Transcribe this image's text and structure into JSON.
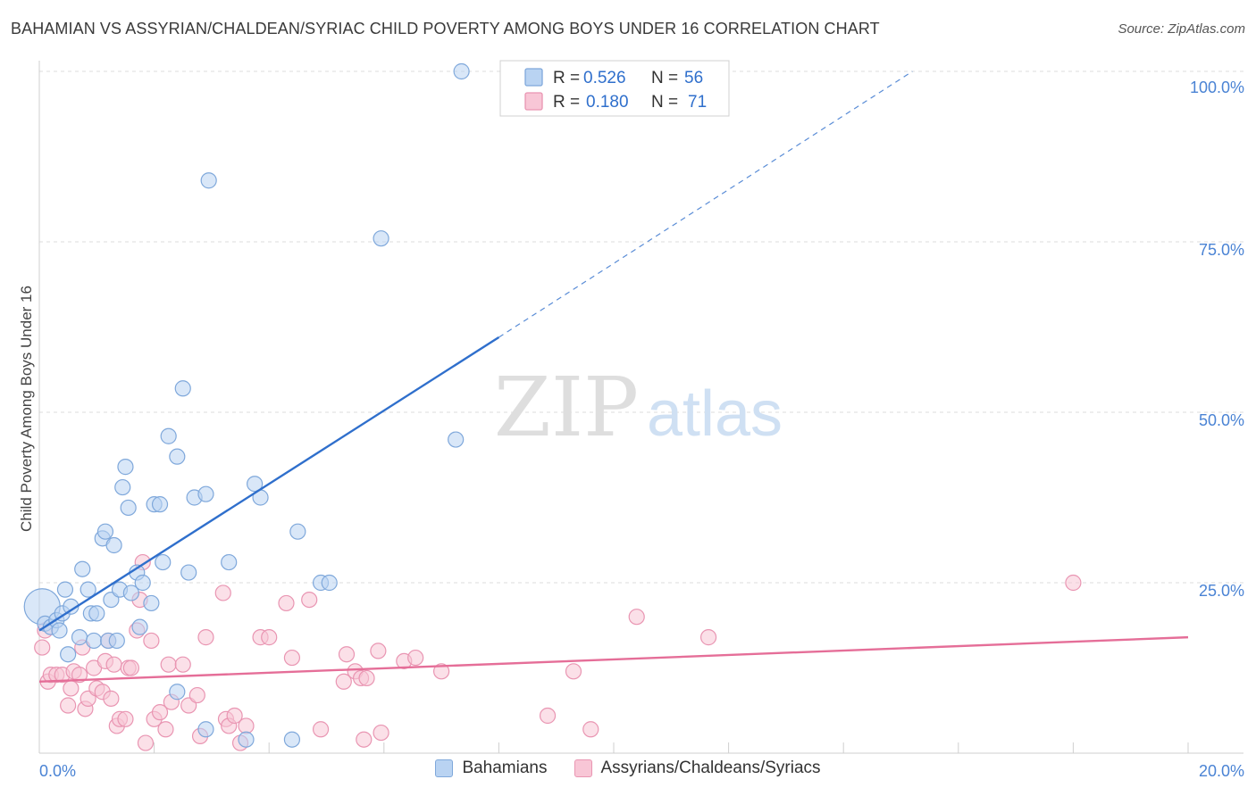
{
  "title": "BAHAMIAN VS ASSYRIAN/CHALDEAN/SYRIAC CHILD POVERTY AMONG BOYS UNDER 16 CORRELATION CHART",
  "source": "Source: ZipAtlas.com",
  "watermark": {
    "zip": "ZIP",
    "atlas": "atlas"
  },
  "colors": {
    "blue_fill": "#b9d3f2",
    "blue_stroke": "#7fa8db",
    "blue_line": "#2f6fcc",
    "pink_fill": "#f8c6d6",
    "pink_stroke": "#e995b2",
    "pink_line": "#e56e98",
    "axis_text": "#4a83d4",
    "grid": "#dcdcdc"
  },
  "chart_data": {
    "type": "scatter",
    "ylabel": "Child Poverty Among Boys Under 16",
    "xlabel": "",
    "xlim": [
      0,
      20
    ],
    "ylim": [
      0,
      100
    ],
    "x_tick_labels": [
      "0.0%",
      "20.0%"
    ],
    "y_ticks": [
      {
        "value": 25,
        "label": "25.0%"
      },
      {
        "value": 50,
        "label": "50.0%"
      },
      {
        "value": 75,
        "label": "75.0%"
      },
      {
        "value": 100,
        "label": "100.0%"
      }
    ],
    "legend": {
      "rows": [
        {
          "r_label": "R =",
          "r_value": "0.526",
          "n_label": "N =",
          "n_value": "56"
        },
        {
          "r_label": "R =",
          "r_value": "0.180",
          "n_label": "N =",
          "n_value": "71"
        }
      ]
    },
    "series": [
      {
        "name": "Bahamians",
        "trend": {
          "x0": 0.0,
          "y0": 18.0,
          "x1": 8.0,
          "y1": 61.0,
          "dash_x1": 15.2,
          "dash_y1": 100.0
        },
        "points": [
          [
            0.05,
            21.5
          ],
          [
            0.1,
            19
          ],
          [
            0.2,
            18.5
          ],
          [
            0.3,
            19.5
          ],
          [
            0.35,
            18
          ],
          [
            0.4,
            20.5
          ],
          [
            0.45,
            24
          ],
          [
            0.5,
            14.5
          ],
          [
            0.55,
            21.5
          ],
          [
            0.7,
            17
          ],
          [
            0.75,
            27
          ],
          [
            0.85,
            24
          ],
          [
            0.9,
            20.5
          ],
          [
            0.95,
            16.5
          ],
          [
            1.0,
            20.5
          ],
          [
            1.1,
            31.5
          ],
          [
            1.15,
            32.5
          ],
          [
            1.2,
            16.5
          ],
          [
            1.25,
            22.5
          ],
          [
            1.3,
            30.5
          ],
          [
            1.35,
            16.5
          ],
          [
            1.4,
            24
          ],
          [
            1.45,
            39
          ],
          [
            1.5,
            42
          ],
          [
            1.55,
            36
          ],
          [
            1.6,
            23.5
          ],
          [
            1.7,
            26.5
          ],
          [
            1.75,
            18.5
          ],
          [
            1.8,
            25
          ],
          [
            1.95,
            22
          ],
          [
            2.0,
            36.5
          ],
          [
            2.1,
            36.5
          ],
          [
            2.15,
            28
          ],
          [
            2.25,
            46.5
          ],
          [
            2.4,
            43.5
          ],
          [
            2.4,
            9
          ],
          [
            2.5,
            53.5
          ],
          [
            2.6,
            26.5
          ],
          [
            2.7,
            37.5
          ],
          [
            2.9,
            38
          ],
          [
            2.95,
            84
          ],
          [
            2.9,
            3.5
          ],
          [
            3.3,
            28
          ],
          [
            3.6,
            2
          ],
          [
            3.75,
            39.5
          ],
          [
            3.85,
            37.5
          ],
          [
            4.4,
            2
          ],
          [
            4.5,
            32.5
          ],
          [
            4.9,
            25
          ],
          [
            5.05,
            25
          ],
          [
            5.95,
            75.5
          ],
          [
            7.25,
            46
          ],
          [
            7.35,
            100
          ]
        ]
      },
      {
        "name": "Assyrians/Chaldeans/Syriacs",
        "trend": {
          "x0": 0.0,
          "y0": 10.5,
          "x1": 20.0,
          "y1": 17.0
        },
        "points": [
          [
            0.05,
            15.5
          ],
          [
            0.1,
            18
          ],
          [
            0.15,
            10.5
          ],
          [
            0.2,
            11.5
          ],
          [
            0.3,
            11.5
          ],
          [
            0.4,
            11.5
          ],
          [
            0.5,
            7
          ],
          [
            0.55,
            9.5
          ],
          [
            0.6,
            12
          ],
          [
            0.7,
            11.5
          ],
          [
            0.75,
            15.5
          ],
          [
            0.8,
            6.5
          ],
          [
            0.85,
            8
          ],
          [
            0.95,
            12.5
          ],
          [
            1.0,
            9.5
          ],
          [
            1.1,
            9
          ],
          [
            1.15,
            13.5
          ],
          [
            1.2,
            16.5
          ],
          [
            1.25,
            8
          ],
          [
            1.3,
            13
          ],
          [
            1.35,
            4
          ],
          [
            1.4,
            5
          ],
          [
            1.5,
            5
          ],
          [
            1.55,
            12.5
          ],
          [
            1.6,
            12.5
          ],
          [
            1.7,
            18
          ],
          [
            1.75,
            22.5
          ],
          [
            1.8,
            28
          ],
          [
            1.85,
            1.5
          ],
          [
            1.95,
            16.5
          ],
          [
            2.0,
            5
          ],
          [
            2.1,
            6
          ],
          [
            2.2,
            3.5
          ],
          [
            2.25,
            13
          ],
          [
            2.3,
            7.5
          ],
          [
            2.5,
            13
          ],
          [
            2.6,
            7
          ],
          [
            2.75,
            8.5
          ],
          [
            2.8,
            2.5
          ],
          [
            2.9,
            17
          ],
          [
            3.2,
            23.5
          ],
          [
            3.25,
            5
          ],
          [
            3.3,
            4
          ],
          [
            3.4,
            5.5
          ],
          [
            3.5,
            1.5
          ],
          [
            3.6,
            4
          ],
          [
            3.85,
            17
          ],
          [
            4.0,
            17
          ],
          [
            4.3,
            22
          ],
          [
            4.4,
            14
          ],
          [
            4.7,
            22.5
          ],
          [
            4.9,
            3.5
          ],
          [
            5.3,
            10.5
          ],
          [
            5.35,
            14.5
          ],
          [
            5.5,
            12
          ],
          [
            5.6,
            11
          ],
          [
            5.65,
            2
          ],
          [
            5.7,
            11
          ],
          [
            5.9,
            15
          ],
          [
            5.95,
            3
          ],
          [
            6.35,
            13.5
          ],
          [
            6.55,
            14
          ],
          [
            7.0,
            12
          ],
          [
            8.85,
            5.5
          ],
          [
            9.3,
            12
          ],
          [
            9.6,
            3.5
          ],
          [
            10.4,
            20
          ],
          [
            11.65,
            17
          ],
          [
            18.0,
            25
          ]
        ]
      }
    ]
  },
  "legend_bottom": [
    {
      "label": "Bahamians"
    },
    {
      "label": "Assyrians/Chaldeans/Syriacs"
    }
  ]
}
